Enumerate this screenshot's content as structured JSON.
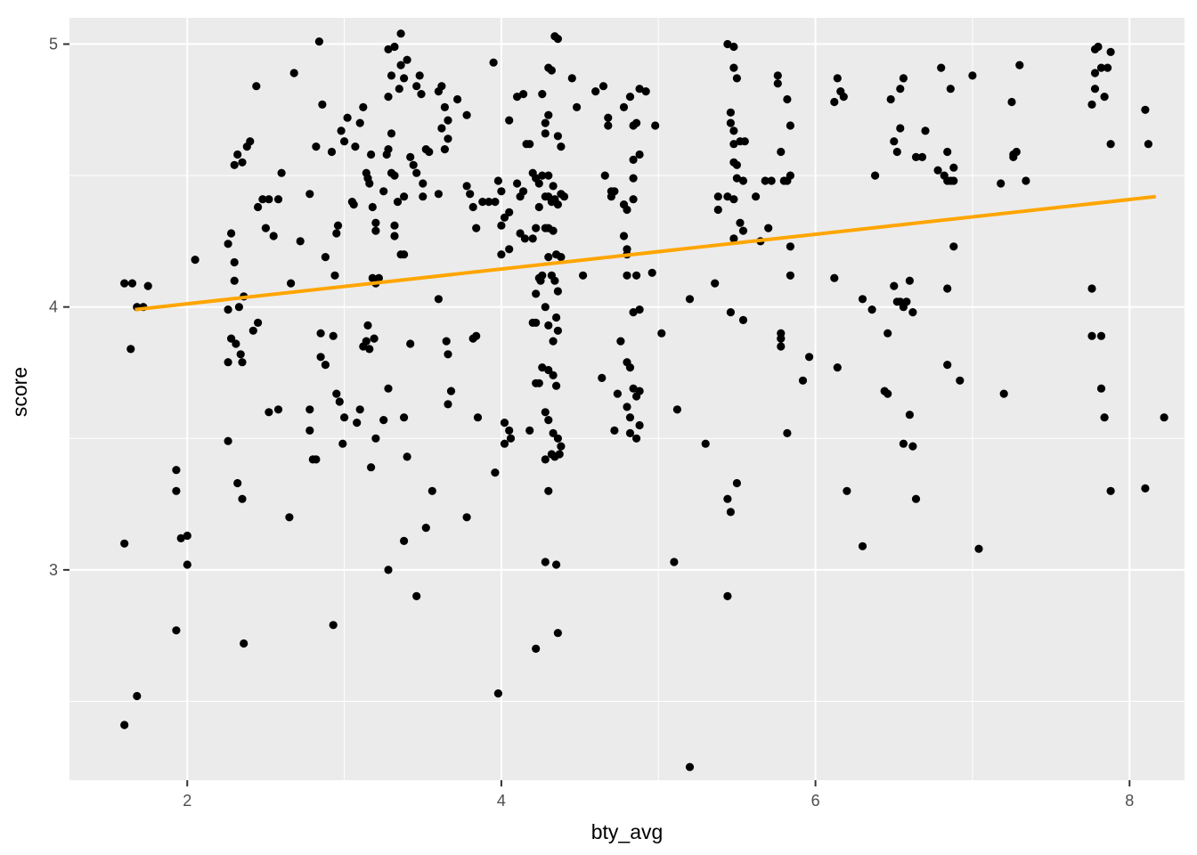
{
  "chart_data": {
    "type": "scatter",
    "title": "",
    "xlabel": "bty_avg",
    "ylabel": "score",
    "xlim": [
      1.25,
      8.35
    ],
    "ylim": [
      2.2,
      5.1
    ],
    "x_ticks": [
      2,
      4,
      6,
      8
    ],
    "x_tick_labels": [
      "2",
      "4",
      "6",
      "8"
    ],
    "y_ticks": [
      3,
      4,
      5
    ],
    "y_tick_labels": [
      "3",
      "4",
      "5"
    ],
    "grid": true,
    "legend": "none",
    "point_color": "#000000",
    "panel_color": "#EBEBEB",
    "regression_line": {
      "color": "#FFA500",
      "x": [
        1.667,
        8.167
      ],
      "y": [
        3.99,
        4.42
      ]
    },
    "points": [
      [
        1.6,
        4.09
      ],
      [
        1.65,
        4.09
      ],
      [
        1.75,
        4.08
      ],
      [
        1.68,
        4.0
      ],
      [
        1.72,
        4.0
      ],
      [
        1.64,
        3.84
      ],
      [
        1.6,
        3.1
      ],
      [
        1.6,
        2.41
      ],
      [
        1.68,
        2.52
      ],
      [
        1.93,
        3.38
      ],
      [
        1.93,
        3.3
      ],
      [
        1.96,
        3.12
      ],
      [
        2.0,
        3.13
      ],
      [
        2.0,
        3.02
      ],
      [
        1.93,
        2.77
      ],
      [
        2.05,
        4.18
      ],
      [
        2.26,
        4.24
      ],
      [
        2.28,
        4.28
      ],
      [
        2.3,
        4.17
      ],
      [
        2.3,
        4.1
      ],
      [
        2.33,
        4.0
      ],
      [
        2.26,
        3.99
      ],
      [
        2.36,
        4.04
      ],
      [
        2.38,
        4.61
      ],
      [
        2.4,
        4.63
      ],
      [
        2.3,
        4.54
      ],
      [
        2.32,
        4.58
      ],
      [
        2.35,
        4.55
      ],
      [
        2.44,
        4.84
      ],
      [
        2.45,
        4.38
      ],
      [
        2.48,
        4.41
      ],
      [
        2.5,
        4.3
      ],
      [
        2.52,
        4.41
      ],
      [
        2.55,
        4.27
      ],
      [
        2.58,
        4.41
      ],
      [
        2.6,
        4.51
      ],
      [
        2.28,
        3.88
      ],
      [
        2.31,
        3.86
      ],
      [
        2.34,
        3.82
      ],
      [
        2.35,
        3.79
      ],
      [
        2.26,
        3.79
      ],
      [
        2.42,
        3.91
      ],
      [
        2.45,
        3.94
      ],
      [
        2.26,
        3.49
      ],
      [
        2.52,
        3.6
      ],
      [
        2.58,
        3.61
      ],
      [
        2.32,
        3.33
      ],
      [
        2.35,
        3.27
      ],
      [
        2.36,
        2.72
      ],
      [
        2.68,
        4.89
      ],
      [
        2.65,
        3.2
      ],
      [
        2.66,
        4.09
      ],
      [
        2.72,
        4.25
      ],
      [
        2.78,
        4.43
      ],
      [
        2.78,
        3.61
      ],
      [
        2.78,
        3.53
      ],
      [
        2.8,
        3.42
      ],
      [
        2.82,
        3.42
      ],
      [
        2.85,
        3.9
      ],
      [
        2.85,
        3.81
      ],
      [
        2.88,
        3.78
      ],
      [
        2.84,
        5.01
      ],
      [
        2.86,
        4.77
      ],
      [
        2.82,
        4.61
      ],
      [
        2.88,
        4.19
      ],
      [
        2.94,
        4.12
      ],
      [
        2.92,
        4.59
      ],
      [
        2.95,
        4.28
      ],
      [
        2.96,
        4.31
      ],
      [
        2.93,
        3.89
      ],
      [
        2.95,
        3.67
      ],
      [
        2.97,
        3.64
      ],
      [
        2.98,
        4.67
      ],
      [
        3.0,
        4.63
      ],
      [
        3.0,
        3.58
      ],
      [
        2.99,
        3.48
      ],
      [
        3.02,
        4.72
      ],
      [
        3.05,
        4.4
      ],
      [
        3.06,
        4.39
      ],
      [
        3.07,
        4.61
      ],
      [
        3.08,
        3.56
      ],
      [
        2.93,
        2.79
      ],
      [
        3.1,
        4.7
      ],
      [
        3.12,
        4.76
      ],
      [
        3.14,
        4.51
      ],
      [
        3.15,
        4.49
      ],
      [
        3.16,
        4.47
      ],
      [
        3.17,
        4.58
      ],
      [
        3.18,
        4.38
      ],
      [
        3.2,
        4.29
      ],
      [
        3.2,
        4.32
      ],
      [
        3.18,
        4.11
      ],
      [
        3.2,
        4.09
      ],
      [
        3.22,
        4.11
      ],
      [
        3.15,
        3.93
      ],
      [
        3.14,
        3.87
      ],
      [
        3.12,
        3.85
      ],
      [
        3.16,
        3.84
      ],
      [
        3.19,
        3.88
      ],
      [
        3.1,
        3.61
      ],
      [
        3.2,
        3.5
      ],
      [
        3.17,
        3.39
      ],
      [
        3.25,
        3.57
      ],
      [
        3.25,
        4.44
      ],
      [
        3.27,
        4.58
      ],
      [
        3.28,
        4.6
      ],
      [
        3.3,
        4.66
      ],
      [
        3.3,
        4.51
      ],
      [
        3.32,
        4.5
      ],
      [
        3.28,
        4.8
      ],
      [
        3.3,
        4.88
      ],
      [
        3.35,
        4.83
      ],
      [
        3.36,
        4.92
      ],
      [
        3.38,
        4.87
      ],
      [
        3.4,
        4.94
      ],
      [
        3.32,
        4.99
      ],
      [
        3.36,
        5.04
      ],
      [
        3.28,
        4.98
      ],
      [
        3.32,
        4.27
      ],
      [
        3.32,
        4.31
      ],
      [
        3.36,
        4.2
      ],
      [
        3.38,
        4.2
      ],
      [
        3.34,
        4.4
      ],
      [
        3.38,
        4.42
      ],
      [
        3.38,
        3.58
      ],
      [
        3.38,
        3.11
      ],
      [
        3.28,
        3.69
      ],
      [
        3.28,
        3.0
      ],
      [
        3.4,
        3.43
      ],
      [
        3.42,
        3.86
      ],
      [
        3.42,
        4.57
      ],
      [
        3.44,
        4.54
      ],
      [
        3.46,
        4.84
      ],
      [
        3.48,
        4.88
      ],
      [
        3.49,
        4.81
      ],
      [
        3.52,
        4.6
      ],
      [
        3.54,
        4.59
      ],
      [
        3.5,
        4.47
      ],
      [
        3.46,
        4.51
      ],
      [
        3.5,
        4.42
      ],
      [
        3.46,
        2.9
      ],
      [
        3.52,
        3.16
      ],
      [
        3.56,
        3.3
      ],
      [
        3.6,
        4.82
      ],
      [
        3.62,
        4.84
      ],
      [
        3.64,
        4.76
      ],
      [
        3.66,
        4.64
      ],
      [
        3.62,
        4.68
      ],
      [
        3.64,
        4.6
      ],
      [
        3.66,
        4.71
      ],
      [
        3.6,
        4.43
      ],
      [
        3.6,
        4.03
      ],
      [
        3.65,
        3.87
      ],
      [
        3.66,
        3.82
      ],
      [
        3.68,
        3.68
      ],
      [
        3.66,
        3.63
      ],
      [
        3.72,
        4.79
      ],
      [
        3.78,
        4.73
      ],
      [
        3.78,
        4.46
      ],
      [
        3.8,
        4.43
      ],
      [
        3.84,
        4.3
      ],
      [
        3.82,
        4.38
      ],
      [
        3.78,
        3.2
      ],
      [
        3.82,
        3.88
      ],
      [
        3.84,
        3.89
      ],
      [
        3.85,
        3.58
      ],
      [
        3.88,
        4.4
      ],
      [
        3.92,
        4.4
      ],
      [
        3.96,
        4.4
      ],
      [
        3.98,
        4.48
      ],
      [
        4.0,
        4.44
      ],
      [
        3.95,
        4.93
      ],
      [
        3.96,
        3.37
      ],
      [
        3.98,
        2.53
      ],
      [
        4.0,
        4.31
      ],
      [
        4.02,
        4.34
      ],
      [
        4.05,
        4.36
      ],
      [
        4.0,
        4.2
      ],
      [
        4.05,
        4.22
      ],
      [
        4.05,
        4.71
      ],
      [
        4.1,
        4.8
      ],
      [
        4.14,
        4.81
      ],
      [
        4.02,
        3.56
      ],
      [
        4.05,
        3.53
      ],
      [
        4.06,
        3.5
      ],
      [
        4.02,
        3.48
      ],
      [
        4.18,
        3.53
      ],
      [
        4.1,
        4.47
      ],
      [
        4.12,
        4.42
      ],
      [
        4.14,
        4.44
      ],
      [
        4.12,
        4.28
      ],
      [
        4.15,
        4.26
      ],
      [
        4.18,
        4.62
      ],
      [
        4.16,
        4.62
      ],
      [
        4.2,
        4.51
      ],
      [
        4.22,
        4.49
      ],
      [
        4.24,
        4.47
      ],
      [
        4.26,
        4.5
      ],
      [
        4.22,
        4.3
      ],
      [
        4.24,
        4.38
      ],
      [
        4.2,
        4.26
      ],
      [
        4.22,
        4.05
      ],
      [
        4.24,
        4.11
      ],
      [
        4.26,
        4.12
      ],
      [
        4.25,
        4.1
      ],
      [
        4.2,
        3.94
      ],
      [
        4.22,
        3.94
      ],
      [
        4.24,
        3.71
      ],
      [
        4.26,
        3.77
      ],
      [
        4.22,
        3.71
      ],
      [
        4.22,
        2.7
      ],
      [
        4.26,
        4.81
      ],
      [
        4.28,
        4.7
      ],
      [
        4.3,
        4.73
      ],
      [
        4.28,
        4.66
      ],
      [
        4.3,
        4.91
      ],
      [
        4.32,
        4.9
      ],
      [
        4.34,
        5.03
      ],
      [
        4.36,
        5.02
      ],
      [
        4.28,
        4.42
      ],
      [
        4.3,
        4.42
      ],
      [
        4.32,
        4.4
      ],
      [
        4.34,
        4.41
      ],
      [
        4.36,
        4.39
      ],
      [
        4.38,
        4.43
      ],
      [
        4.3,
        4.5
      ],
      [
        4.33,
        4.46
      ],
      [
        4.28,
        4.3
      ],
      [
        4.3,
        4.3
      ],
      [
        4.33,
        4.29
      ],
      [
        4.35,
        4.2
      ],
      [
        4.3,
        4.19
      ],
      [
        4.32,
        4.12
      ],
      [
        4.34,
        4.1
      ],
      [
        4.36,
        4.06
      ],
      [
        4.28,
        4.0
      ],
      [
        4.3,
        3.93
      ],
      [
        4.33,
        3.87
      ],
      [
        4.35,
        3.96
      ],
      [
        4.36,
        3.91
      ],
      [
        4.3,
        3.76
      ],
      [
        4.33,
        3.74
      ],
      [
        4.35,
        3.7
      ],
      [
        4.28,
        3.6
      ],
      [
        4.3,
        3.57
      ],
      [
        4.33,
        3.52
      ],
      [
        4.36,
        3.5
      ],
      [
        4.28,
        3.42
      ],
      [
        4.32,
        3.44
      ],
      [
        4.34,
        3.43
      ],
      [
        4.37,
        3.44
      ],
      [
        4.3,
        3.3
      ],
      [
        4.28,
        3.03
      ],
      [
        4.35,
        3.02
      ],
      [
        4.36,
        2.76
      ],
      [
        4.38,
        3.47
      ],
      [
        4.38,
        4.19
      ],
      [
        4.36,
        4.65
      ],
      [
        4.38,
        4.61
      ],
      [
        4.4,
        4.42
      ],
      [
        4.45,
        4.87
      ],
      [
        4.48,
        4.76
      ],
      [
        4.52,
        4.12
      ],
      [
        4.6,
        4.82
      ],
      [
        4.65,
        4.84
      ],
      [
        4.68,
        4.72
      ],
      [
        4.68,
        4.69
      ],
      [
        4.66,
        4.5
      ],
      [
        4.7,
        4.44
      ],
      [
        4.72,
        4.44
      ],
      [
        4.7,
        4.42
      ],
      [
        4.64,
        3.73
      ],
      [
        4.72,
        3.53
      ],
      [
        4.74,
        3.67
      ],
      [
        4.76,
        3.87
      ],
      [
        4.78,
        4.39
      ],
      [
        4.8,
        4.37
      ],
      [
        4.78,
        4.27
      ],
      [
        4.8,
        4.22
      ],
      [
        4.8,
        4.2
      ],
      [
        4.78,
        4.76
      ],
      [
        4.82,
        4.8
      ],
      [
        4.84,
        4.56
      ],
      [
        4.84,
        4.49
      ],
      [
        4.84,
        4.41
      ],
      [
        4.8,
        4.12
      ],
      [
        4.86,
        4.12
      ],
      [
        4.8,
        3.79
      ],
      [
        4.82,
        3.77
      ],
      [
        4.84,
        3.69
      ],
      [
        4.86,
        3.66
      ],
      [
        4.8,
        3.62
      ],
      [
        4.82,
        3.58
      ],
      [
        4.86,
        3.5
      ],
      [
        4.82,
        3.52
      ],
      [
        4.84,
        4.69
      ],
      [
        4.86,
        4.7
      ],
      [
        4.88,
        4.83
      ],
      [
        4.92,
        4.82
      ],
      [
        4.88,
        4.58
      ],
      [
        4.84,
        3.98
      ],
      [
        4.88,
        3.99
      ],
      [
        4.88,
        3.68
      ],
      [
        4.88,
        3.55
      ],
      [
        4.98,
        4.69
      ],
      [
        4.96,
        4.13
      ],
      [
        5.02,
        3.9
      ],
      [
        5.12,
        3.61
      ],
      [
        5.1,
        3.03
      ],
      [
        5.2,
        4.03
      ],
      [
        5.2,
        2.25
      ],
      [
        5.3,
        3.48
      ],
      [
        5.38,
        4.42
      ],
      [
        5.38,
        4.37
      ],
      [
        5.36,
        4.09
      ],
      [
        5.44,
        5.0
      ],
      [
        5.48,
        4.99
      ],
      [
        5.48,
        4.91
      ],
      [
        5.5,
        4.87
      ],
      [
        5.46,
        4.74
      ],
      [
        5.46,
        4.7
      ],
      [
        5.48,
        4.67
      ],
      [
        5.48,
        4.62
      ],
      [
        5.44,
        4.42
      ],
      [
        5.48,
        4.41
      ],
      [
        5.5,
        4.49
      ],
      [
        5.5,
        4.54
      ],
      [
        5.52,
        4.63
      ],
      [
        5.55,
        4.63
      ],
      [
        5.54,
        4.48
      ],
      [
        5.54,
        4.29
      ],
      [
        5.48,
        4.26
      ],
      [
        5.52,
        4.32
      ],
      [
        5.46,
        3.98
      ],
      [
        5.54,
        3.95
      ],
      [
        5.44,
        3.27
      ],
      [
        5.46,
        3.22
      ],
      [
        5.5,
        3.33
      ],
      [
        5.44,
        2.9
      ],
      [
        5.48,
        4.55
      ],
      [
        5.62,
        4.42
      ],
      [
        5.65,
        4.25
      ],
      [
        5.7,
        4.3
      ],
      [
        5.68,
        4.48
      ],
      [
        5.72,
        4.48
      ],
      [
        5.76,
        4.88
      ],
      [
        5.76,
        4.85
      ],
      [
        5.78,
        4.59
      ],
      [
        5.8,
        4.48
      ],
      [
        5.82,
        4.79
      ],
      [
        5.84,
        4.69
      ],
      [
        5.84,
        4.5
      ],
      [
        5.82,
        4.48
      ],
      [
        5.84,
        4.23
      ],
      [
        5.84,
        4.12
      ],
      [
        5.78,
        3.9
      ],
      [
        5.78,
        3.88
      ],
      [
        5.78,
        3.85
      ],
      [
        5.82,
        3.52
      ],
      [
        5.92,
        3.72
      ],
      [
        5.96,
        3.81
      ],
      [
        6.12,
        4.78
      ],
      [
        6.14,
        4.87
      ],
      [
        6.16,
        4.82
      ],
      [
        6.18,
        4.8
      ],
      [
        6.12,
        4.11
      ],
      [
        6.14,
        3.77
      ],
      [
        6.2,
        3.3
      ],
      [
        6.3,
        4.03
      ],
      [
        6.36,
        3.99
      ],
      [
        6.3,
        3.09
      ],
      [
        6.38,
        4.5
      ],
      [
        6.44,
        3.68
      ],
      [
        6.46,
        3.67
      ],
      [
        6.46,
        3.9
      ],
      [
        6.48,
        4.79
      ],
      [
        6.5,
        4.63
      ],
      [
        6.52,
        4.59
      ],
      [
        6.54,
        4.83
      ],
      [
        6.56,
        4.87
      ],
      [
        6.54,
        4.68
      ],
      [
        6.5,
        4.08
      ],
      [
        6.52,
        4.02
      ],
      [
        6.54,
        4.02
      ],
      [
        6.56,
        4.0
      ],
      [
        6.58,
        4.02
      ],
      [
        6.6,
        4.1
      ],
      [
        6.62,
        3.98
      ],
      [
        6.56,
        3.48
      ],
      [
        6.6,
        3.59
      ],
      [
        6.62,
        3.47
      ],
      [
        6.64,
        3.27
      ],
      [
        6.64,
        4.57
      ],
      [
        6.68,
        4.57
      ],
      [
        6.7,
        4.67
      ],
      [
        6.78,
        4.52
      ],
      [
        6.8,
        4.91
      ],
      [
        6.82,
        4.5
      ],
      [
        6.84,
        4.59
      ],
      [
        6.84,
        4.48
      ],
      [
        6.86,
        4.48
      ],
      [
        6.88,
        4.53
      ],
      [
        6.88,
        4.48
      ],
      [
        6.84,
        4.07
      ],
      [
        6.88,
        4.23
      ],
      [
        6.84,
        3.78
      ],
      [
        6.92,
        3.72
      ],
      [
        6.86,
        4.83
      ],
      [
        7.0,
        4.88
      ],
      [
        7.04,
        3.08
      ],
      [
        7.18,
        4.47
      ],
      [
        7.2,
        3.67
      ],
      [
        7.25,
        4.78
      ],
      [
        7.26,
        4.58
      ],
      [
        7.28,
        4.59
      ],
      [
        7.26,
        4.57
      ],
      [
        7.3,
        4.92
      ],
      [
        7.34,
        4.48
      ],
      [
        7.76,
        4.77
      ],
      [
        7.78,
        4.83
      ],
      [
        7.78,
        4.89
      ],
      [
        7.8,
        4.99
      ],
      [
        7.78,
        4.98
      ],
      [
        7.82,
        4.91
      ],
      [
        7.84,
        4.8
      ],
      [
        7.86,
        4.91
      ],
      [
        7.88,
        4.97
      ],
      [
        7.88,
        4.62
      ],
      [
        7.76,
        4.07
      ],
      [
        7.76,
        3.89
      ],
      [
        7.82,
        3.89
      ],
      [
        7.82,
        3.69
      ],
      [
        7.84,
        3.58
      ],
      [
        7.88,
        3.3
      ],
      [
        8.1,
        4.75
      ],
      [
        8.12,
        4.62
      ],
      [
        8.1,
        3.31
      ],
      [
        8.22,
        3.58
      ]
    ]
  }
}
